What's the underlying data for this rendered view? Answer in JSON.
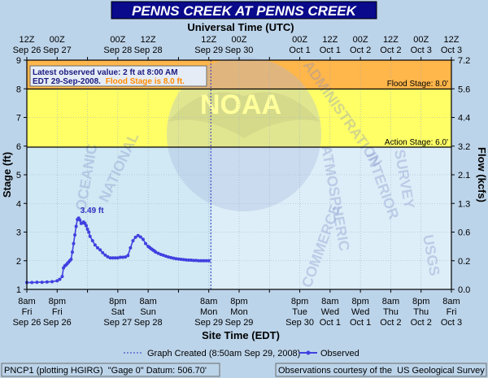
{
  "chart_data": {
    "type": "line",
    "title": "PENNS CREEK  AT PENNS CREEK",
    "top_axis_title": "Universal Time (UTC)",
    "bottom_axis_title": "Site Time (EDT)",
    "ylabel": "Stage (ft)",
    "y2label": "Flow (kcfs)",
    "ylim": [
      1,
      9
    ],
    "y_ticks": [
      "1",
      "2",
      "3",
      "4",
      "5",
      "6",
      "7",
      "8",
      "9"
    ],
    "flow_ticks": [
      "0.0",
      "0.2",
      "0.6",
      "1.3",
      "2.1",
      "3.2",
      "4.4",
      "5.6",
      "7.2"
    ],
    "top_ticks": [
      {
        "l1": "12Z",
        "l2": "Sep 26"
      },
      {
        "l1": "00Z",
        "l2": "Sep 27"
      },
      {
        "l1": "12Z",
        "l2": "Sep 27"
      },
      {
        "l1": "00Z",
        "l2": "Sep 28"
      },
      {
        "l1": "12Z",
        "l2": "Sep 28"
      },
      {
        "l1": "00Z",
        "l2": "Sep 29"
      },
      {
        "l1": "12Z",
        "l2": "Sep 29"
      },
      {
        "l1": "00Z",
        "l2": "Sep 30"
      },
      {
        "l1": "12Z",
        "l2": "Sep 30"
      },
      {
        "l1": "00Z",
        "l2": "Oct 1"
      },
      {
        "l1": "12Z",
        "l2": "Oct 1"
      },
      {
        "l1": "00Z",
        "l2": "Oct 2"
      },
      {
        "l1": "12Z",
        "l2": "Oct 2"
      },
      {
        "l1": "00Z",
        "l2": "Oct 3"
      },
      {
        "l1": "12Z",
        "l2": "Oct 3"
      }
    ],
    "bottom_ticks": [
      {
        "l1": "8am",
        "l2": "Fri",
        "l3": "Sep 26"
      },
      {
        "l1": "8pm",
        "l2": "Fri",
        "l3": "Sep 26"
      },
      {
        "l1": "8am",
        "l2": "Sat",
        "l3": "Sep 27"
      },
      {
        "l1": "8pm",
        "l2": "Sat",
        "l3": "Sep 27"
      },
      {
        "l1": "8am",
        "l2": "Sun",
        "l3": "Sep 28"
      },
      {
        "l1": "8pm",
        "l2": "Sun",
        "l3": "Sep 28"
      },
      {
        "l1": "8am",
        "l2": "Mon",
        "l3": "Sep 29"
      },
      {
        "l1": "8pm",
        "l2": "Mon",
        "l3": "Sep 29"
      },
      {
        "l1": "8am",
        "l2": "Tue",
        "l3": "Sep 30"
      },
      {
        "l1": "8pm",
        "l2": "Tue",
        "l3": "Sep 30"
      },
      {
        "l1": "8am",
        "l2": "Wed",
        "l3": "Oct 1"
      },
      {
        "l1": "8pm",
        "l2": "Wed",
        "l3": "Oct 1"
      },
      {
        "l1": "8am",
        "l2": "Thu",
        "l3": "Oct 2"
      },
      {
        "l1": "8pm",
        "l2": "Thu",
        "l3": "Oct 2"
      },
      {
        "l1": "8am",
        "l2": "Fri",
        "l3": "Oct 3"
      }
    ],
    "top_tick_labels_shown": [
      0,
      1,
      3,
      4,
      6,
      7,
      9,
      10,
      11,
      12,
      13,
      14
    ],
    "bottom_tick_labels_shown": [
      0,
      1,
      3,
      4,
      6,
      7,
      9,
      10,
      11,
      12,
      13,
      14
    ],
    "flood_stage": {
      "value": 8.0,
      "label": "Flood Stage: 8.0'",
      "band_color": "#ffff66"
    },
    "action_stage": {
      "value": 6.0,
      "label": "Action Stage: 6.0'"
    },
    "major_band_color": "#ffb64a",
    "normal_band_color": "#ddeef8",
    "graph_created_hours": 72.8,
    "peak_label": "3.49 ft",
    "series": [
      {
        "name": "Observed",
        "color": "#4040e0",
        "x": [
          0,
          2,
          4,
          6,
          8,
          10,
          12,
          13,
          14,
          14.5,
          15,
          15.5,
          16,
          16.5,
          17,
          17.5,
          18,
          18.5,
          19,
          19.5,
          20,
          20.5,
          21,
          21.5,
          22,
          22.5,
          23,
          23.5,
          24,
          24.5,
          25,
          26,
          27,
          28,
          29,
          30,
          31,
          32,
          33,
          34,
          35,
          36,
          37,
          38,
          39,
          40,
          41,
          42,
          43,
          44,
          45,
          46,
          47,
          48,
          48.5,
          49,
          49.5,
          50,
          50.5,
          51,
          52,
          53,
          54,
          55,
          56,
          57,
          58,
          59,
          60,
          61,
          62,
          63,
          64,
          65,
          66,
          67,
          68,
          69,
          70,
          71,
          72
        ],
        "y": [
          1.24,
          1.24,
          1.25,
          1.25,
          1.26,
          1.27,
          1.3,
          1.35,
          1.45,
          1.75,
          1.82,
          1.85,
          1.9,
          1.95,
          2.0,
          2.05,
          2.3,
          2.6,
          2.9,
          3.2,
          3.44,
          3.49,
          3.42,
          3.3,
          3.32,
          3.35,
          3.3,
          3.22,
          3.1,
          3.0,
          2.85,
          2.7,
          2.55,
          2.45,
          2.38,
          2.28,
          2.2,
          2.14,
          2.1,
          2.1,
          2.1,
          2.1,
          2.12,
          2.12,
          2.13,
          2.18,
          2.45,
          2.7,
          2.82,
          2.88,
          2.83,
          2.75,
          2.6,
          2.5,
          2.47,
          2.43,
          2.4,
          2.37,
          2.34,
          2.3,
          2.26,
          2.22,
          2.19,
          2.16,
          2.13,
          2.11,
          2.09,
          2.07,
          2.06,
          2.05,
          2.04,
          2.03,
          2.02,
          2.02,
          2.01,
          2.01,
          2.0,
          2.0,
          2.0,
          2.0,
          2.0
        ]
      }
    ]
  },
  "info_box": {
    "line1": "Latest observed value: 2 ft at 8:00 AM",
    "line2_prefix": "EDT 29-Sep-2008.",
    "line2_flood": "Flood Stage is 8.0 ft."
  },
  "watermark_text": {
    "noaa": "NOAA",
    "administration": "ADMINISTRATION",
    "national": "NATIONAL",
    "oceanic": "OCEANIC",
    "atmospheric": "ATMOSPHERIC",
    "usgs": "USGS",
    "commerce": "COMMERCE",
    "interior": "INTERIOR",
    "survey": "SURVEY"
  },
  "legend": {
    "graph_created_label": "Graph Created (8:50am Sep 29, 2008)",
    "observed_label": "Observed"
  },
  "footer": {
    "left": "PNCP1 (plotting HGIRG)  \"Gage 0\" Datum: 506.70'",
    "right": "Observations courtesy of the  US Geological Survey"
  },
  "colors": {
    "page_bg": "#bcd4ea",
    "title_bar": "#0a0a8c",
    "title_text": "#ffffff",
    "info_line1": "#1a1a80",
    "info_flood": "#ff8c00"
  }
}
